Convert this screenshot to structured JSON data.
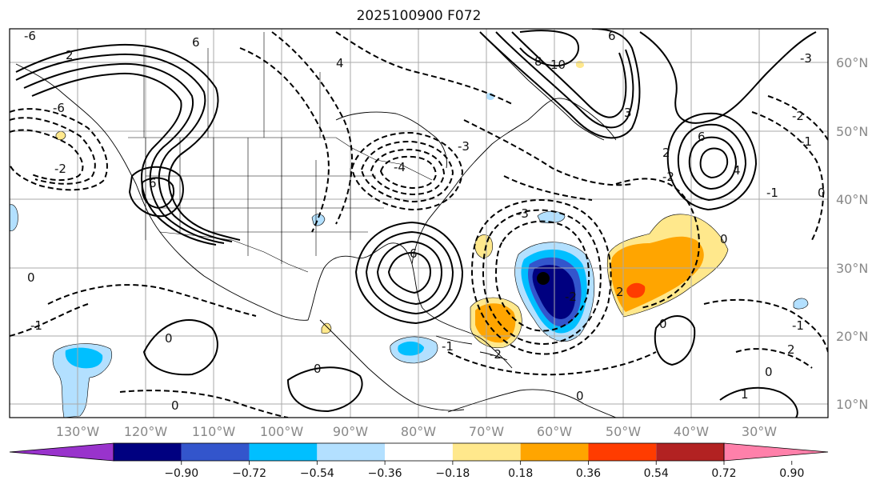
{
  "title": "2025100900 F072",
  "map": {
    "lon_range": [
      -140,
      -20
    ],
    "lat_range": [
      8,
      65
    ],
    "lon_ticks": [
      "130°W",
      "120°W",
      "110°W",
      "100°W",
      "90°W",
      "80°W",
      "70°W",
      "60°W",
      "50°W",
      "40°W",
      "30°W"
    ],
    "lat_ticks": [
      "10°N",
      "20°N",
      "30°N",
      "40°N",
      "50°N",
      "60°N"
    ],
    "gridlines": true,
    "contour_labels": [
      "-6",
      "2",
      "-6",
      "4",
      "6",
      "-2",
      "6",
      "6",
      "-4",
      "-3",
      "-2",
      "6",
      "8",
      "10",
      "3",
      "-3",
      "2",
      "4",
      "6",
      "0",
      "-3",
      "2",
      "-2",
      "-1",
      "0",
      "-1",
      "2",
      "-2",
      "0",
      "0",
      "1",
      "-1",
      "-1",
      "0",
      "0",
      "-1",
      "0",
      "0",
      "-2",
      "0"
    ]
  },
  "colorbar": {
    "ticks": [
      "−0.90",
      "−0.72",
      "−0.54",
      "−0.36",
      "−0.18",
      "0.18",
      "0.36",
      "0.54",
      "0.72",
      "0.90"
    ],
    "colors": [
      "#9933cc",
      "#000080",
      "#3355cc",
      "#00bfff",
      "#b3e0ff",
      "#ffffff",
      "#ffe88c",
      "#ffa500",
      "#ff3c00",
      "#b22222",
      "#ff80aa"
    ]
  }
}
